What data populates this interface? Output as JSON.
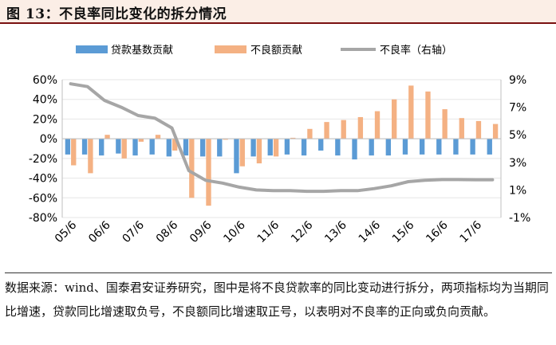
{
  "title": "图 13：不良率同比变化的拆分情况",
  "source_text": "数据来源：wind、国泰君安证券研究，图中是将不良贷款率的同比变动进行拆分，两项指标均为当期同比增速，贷款同比增速取负号，不良额同比增速取正号，以表明对不良率的正向或负向贡献。",
  "colors": {
    "loan_bar": "#5b9bd5",
    "npl_bar": "#f4b183",
    "ratio_line": "#a6a6a6",
    "title_border": "#7a1010",
    "title_bg": "#fbeee6"
  },
  "chart_data": {
    "type": "bar",
    "title": "不良率同比变化的拆分情况",
    "legend": [
      "贷款基数贡献",
      "不良额贡献",
      "不良率（右轴）"
    ],
    "legend_position": "top",
    "x_tick_labels": [
      "05/6",
      "06/6",
      "07/6",
      "08/6",
      "09/6",
      "10/6",
      "11/6",
      "12/6",
      "13/6",
      "14/6",
      "15/6",
      "16/6",
      "17/6"
    ],
    "x_tick_positions": [
      0,
      2,
      4,
      6,
      8,
      10,
      12,
      14,
      16,
      18,
      20,
      22,
      24
    ],
    "n_points": 26,
    "y_left": {
      "ticks": [
        "60%",
        "40%",
        "20%",
        "0%",
        "-20%",
        "-40%",
        "-60%",
        "-80%"
      ],
      "min": -80,
      "max": 60
    },
    "y_right": {
      "ticks": [
        "9%",
        "7%",
        "5%",
        "3%",
        "1%",
        "-1%"
      ],
      "min": -1,
      "max": 9
    },
    "series": [
      {
        "name": "贷款基数贡献",
        "type": "bar",
        "axis": "left",
        "values": [
          -16,
          -16,
          -17,
          -15,
          -17,
          -16,
          -18,
          -17,
          -18,
          -18,
          -35,
          -18,
          -17,
          -16,
          -17,
          -12,
          -17,
          -21,
          -17,
          -17,
          -16,
          -16,
          -16,
          -16,
          -16,
          -16
        ]
      },
      {
        "name": "不良额贡献",
        "type": "bar",
        "axis": "left",
        "values": [
          -27,
          -35,
          4,
          -20,
          -3,
          4,
          -12,
          -60,
          -68,
          -1,
          -28,
          -25,
          -18,
          1,
          10,
          17,
          19,
          22,
          28,
          40,
          54,
          48,
          30,
          21,
          18,
          15
        ]
      },
      {
        "name": "不良率（右轴）",
        "type": "line",
        "axis": "right",
        "values": [
          8.7,
          8.5,
          7.5,
          7.0,
          6.4,
          6.2,
          5.5,
          2.4,
          1.7,
          1.5,
          1.2,
          1.0,
          0.95,
          0.95,
          0.9,
          0.9,
          0.95,
          0.95,
          1.1,
          1.3,
          1.6,
          1.7,
          1.75,
          1.75,
          1.74,
          1.74
        ]
      }
    ]
  }
}
